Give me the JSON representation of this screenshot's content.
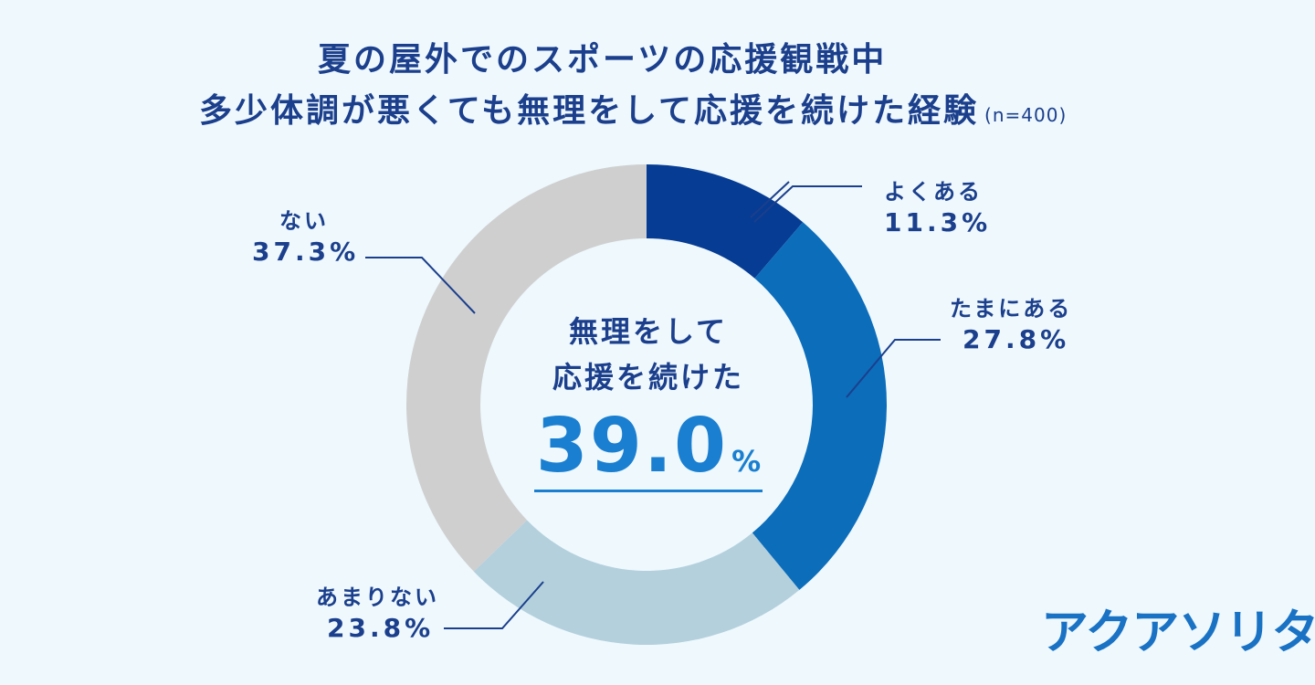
{
  "title": {
    "line1": "夏の屋外でのスポーツの応援観戦中",
    "line2": "多少体調が悪くても無理をして応援を続けた経験",
    "sample": "(n=400)"
  },
  "center": {
    "line1": "無理をして",
    "line2": "応援を続けた",
    "value": "39.0",
    "unit": "%"
  },
  "labels": {
    "yoku": {
      "name": "よくある",
      "value": "11.3%"
    },
    "tama": {
      "name": "たまにある",
      "value": "27.8%"
    },
    "amari": {
      "name": "あまりない",
      "value": "23.8%"
    },
    "nai": {
      "name": "ない",
      "value": "37.3%"
    }
  },
  "logo": {
    "text": "アクアソリタ",
    "mark": "®"
  },
  "chart_data": {
    "type": "pie",
    "donut": true,
    "categories": [
      "よくある",
      "たまにある",
      "あまりない",
      "ない"
    ],
    "values": [
      11.3,
      27.8,
      23.8,
      37.3
    ],
    "colors": [
      "#063c93",
      "#0c6dba",
      "#b3d0dc",
      "#cfcfcf"
    ],
    "start": "top",
    "direction": "clockwise"
  }
}
